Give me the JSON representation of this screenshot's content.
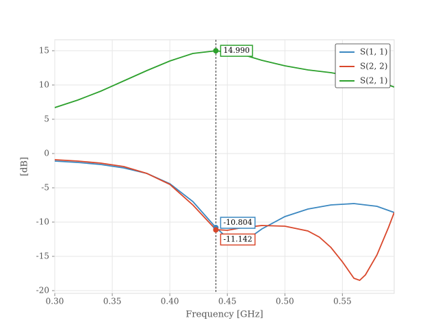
{
  "chart_data": {
    "type": "line",
    "xlabel": "Frequency [GHz]",
    "ylabel": "[dB]",
    "xlim": [
      0.3,
      0.595
    ],
    "ylim": [
      -20.4,
      16.6
    ],
    "xticks": [
      {
        "value": 0.3,
        "label": "0.30"
      },
      0.35,
      {
        "value": 0.4,
        "label": "0.40"
      },
      0.45,
      {
        "value": 0.5,
        "label": "0.50"
      },
      0.55
    ],
    "yticks": [
      -20,
      -15,
      -10,
      -5,
      0,
      5,
      10,
      15
    ],
    "grid": true,
    "legend": "upper right",
    "cursor_x": 0.44,
    "series": [
      {
        "name": "S(1, 1)",
        "color": "#3a87c0",
        "x": [
          0.3,
          0.32,
          0.34,
          0.36,
          0.38,
          0.4,
          0.42,
          0.44,
          0.45,
          0.46,
          0.47,
          0.48,
          0.5,
          0.52,
          0.54,
          0.56,
          0.58,
          0.595
        ],
        "values": [
          -1.1,
          -1.3,
          -1.6,
          -2.1,
          -2.9,
          -4.4,
          -7.0,
          -10.8,
          -12.3,
          -12.7,
          -12.2,
          -11.0,
          -9.2,
          -8.1,
          -7.5,
          -7.3,
          -7.7,
          -8.6
        ]
      },
      {
        "name": "S(2, 2)",
        "color": "#d9472b",
        "x": [
          0.3,
          0.32,
          0.34,
          0.36,
          0.38,
          0.4,
          0.42,
          0.44,
          0.45,
          0.46,
          0.48,
          0.5,
          0.52,
          0.53,
          0.54,
          0.55,
          0.56,
          0.565,
          0.57,
          0.58,
          0.59,
          0.595
        ],
        "values": [
          -0.9,
          -1.1,
          -1.4,
          -1.9,
          -2.9,
          -4.5,
          -7.5,
          -11.1,
          -11.2,
          -10.9,
          -10.5,
          -10.6,
          -11.3,
          -12.2,
          -13.7,
          -15.8,
          -18.2,
          -18.5,
          -17.7,
          -14.8,
          -10.8,
          -8.6
        ]
      },
      {
        "name": "S(2, 1)",
        "color": "#2ca02c",
        "x": [
          0.3,
          0.32,
          0.34,
          0.36,
          0.38,
          0.4,
          0.42,
          0.44,
          0.46,
          0.48,
          0.5,
          0.52,
          0.54,
          0.56,
          0.58,
          0.595
        ],
        "values": [
          6.7,
          7.8,
          9.1,
          10.6,
          12.1,
          13.5,
          14.6,
          14.99,
          14.6,
          13.6,
          12.8,
          12.2,
          11.8,
          11.2,
          10.6,
          9.7
        ]
      }
    ],
    "annotations": [
      {
        "series": "S(2, 1)",
        "x": 0.44,
        "value": 14.99,
        "label": "14.990"
      },
      {
        "series": "S(1, 1)",
        "x": 0.44,
        "value": -10.804,
        "label": "-10.804"
      },
      {
        "series": "S(2, 2)",
        "x": 0.44,
        "value": -11.142,
        "label": "-11.142"
      }
    ]
  }
}
